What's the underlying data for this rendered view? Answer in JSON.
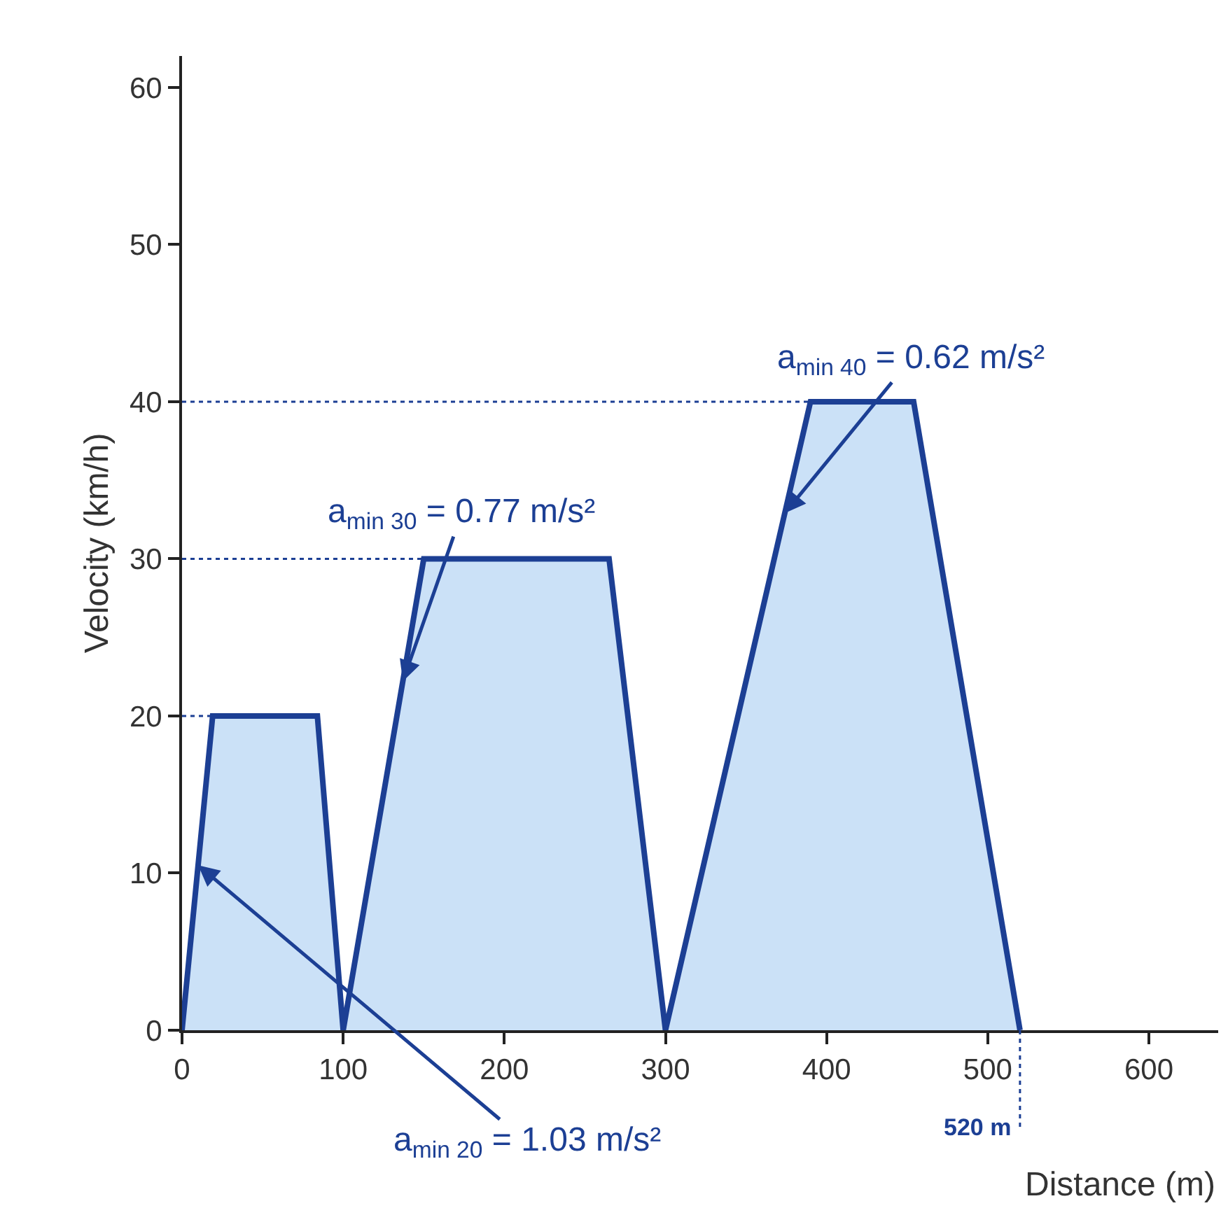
{
  "chart_data": {
    "type": "area",
    "x": [
      0,
      19,
      84,
      100,
      150,
      265,
      300,
      390,
      454,
      520
    ],
    "series": [
      {
        "color": "#1c3f94",
        "values": [
          0,
          20,
          20,
          0,
          30,
          30,
          0,
          40,
          40,
          0
        ]
      },
      {
        "type": "line",
        "x": [
          0,
          19
        ],
        "values": [
          20,
          20
        ],
        "color": "#1c3f94",
        "line_style": "dotted"
      },
      {
        "type": "line",
        "x": [
          0,
          150
        ],
        "values": [
          30,
          30
        ],
        "color": "#1c3f94",
        "line_style": "dotted"
      },
      {
        "type": "line",
        "x": [
          0,
          390
        ],
        "values": [
          40,
          40
        ],
        "color": "#1c3f94",
        "line_style": "dotted"
      }
    ],
    "xlabel": "Distance (m)",
    "ylabel": "Velocity (km/h)",
    "xlim": [
      0,
      643
    ],
    "ylim": [
      0,
      62
    ],
    "xticks": [
      0,
      100,
      200,
      300,
      400,
      500,
      600
    ],
    "yticks": [
      0,
      10,
      20,
      30,
      40,
      50,
      60
    ],
    "marker": "none",
    "line_style": "solid",
    "ref_lines": [
      {
        "axis": "x",
        "value": 520,
        "label": "520 m",
        "line_style": "dotted",
        "color": "#1c3f94"
      }
    ],
    "annotations": [
      {
        "text": "a$_{min 20}$ = 1.03 m/s²",
        "x": 10,
        "y": 10.5
      },
      {
        "text": "a$_{min 30}$ = 0.77 m/s²",
        "x": 137,
        "y": 22.2
      },
      {
        "text": "a$_{min 40}$ = 0.62 m/s²",
        "x": 374,
        "y": 32.9
      }
    ]
  }
}
